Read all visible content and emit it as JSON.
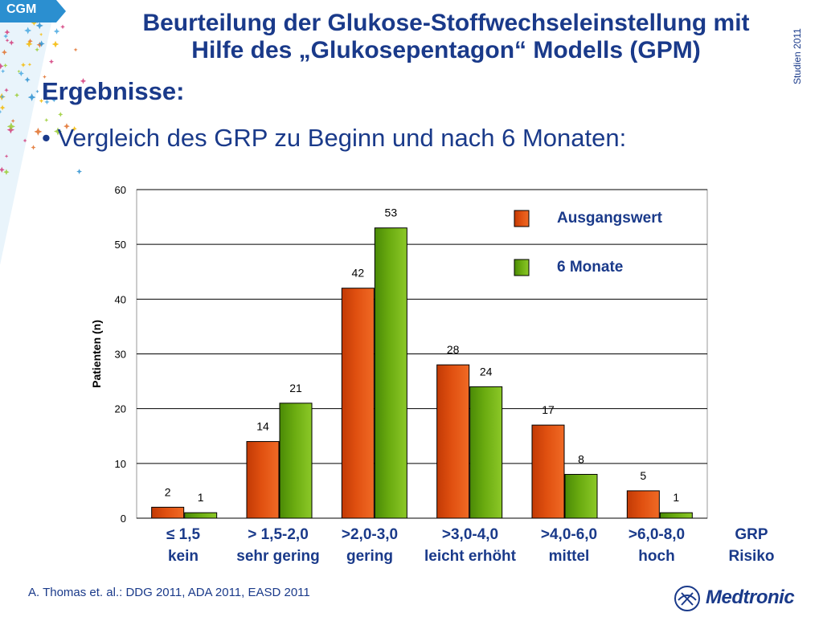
{
  "tag": "CGM",
  "title": {
    "line1": "Beurteilung der Glukose-Stoffwechseleinstellung mit",
    "line2": "Hilfe des „Glukosepentagon“ Modells (GPM)"
  },
  "side_label": "Studien 2011",
  "heading": "Ergebnisse:",
  "bullet": "• Vergleich des GRP zu Beginn und nach 6 Monaten:",
  "footer": "A. Thomas et. al.: DDG 2011, ADA  2011, EASD 2011",
  "logo_text": "Medtronic",
  "colors": {
    "title": "#1a3a8a",
    "series_orange": "#e05010",
    "series_green": "#6aab10",
    "tag": "#2b8fd0"
  },
  "chart_data": {
    "type": "bar",
    "categories": [
      "≤ 1,5",
      "> 1,5-2,0",
      ">2,0-3,0",
      ">3,0-4,0",
      ">4,0-6,0",
      ">6,0-8,0"
    ],
    "risk_labels": [
      "kein",
      "sehr gering",
      "gering",
      "leicht erhöht",
      "mittel",
      "hoch"
    ],
    "axis_caption": [
      "GRP",
      "Risiko"
    ],
    "series": [
      {
        "name": "Ausgangswert",
        "values": [
          2,
          14,
          42,
          28,
          17,
          5
        ],
        "color": "#e05010"
      },
      {
        "name": "6 Monate",
        "values": [
          1,
          21,
          53,
          24,
          8,
          1
        ],
        "color": "#6aab10"
      }
    ],
    "ylabel": "Patienten (n)",
    "ylim": [
      0,
      60
    ],
    "yticks": [
      0,
      10,
      20,
      30,
      40,
      50,
      60
    ],
    "grid": true,
    "legend": "top-right"
  }
}
